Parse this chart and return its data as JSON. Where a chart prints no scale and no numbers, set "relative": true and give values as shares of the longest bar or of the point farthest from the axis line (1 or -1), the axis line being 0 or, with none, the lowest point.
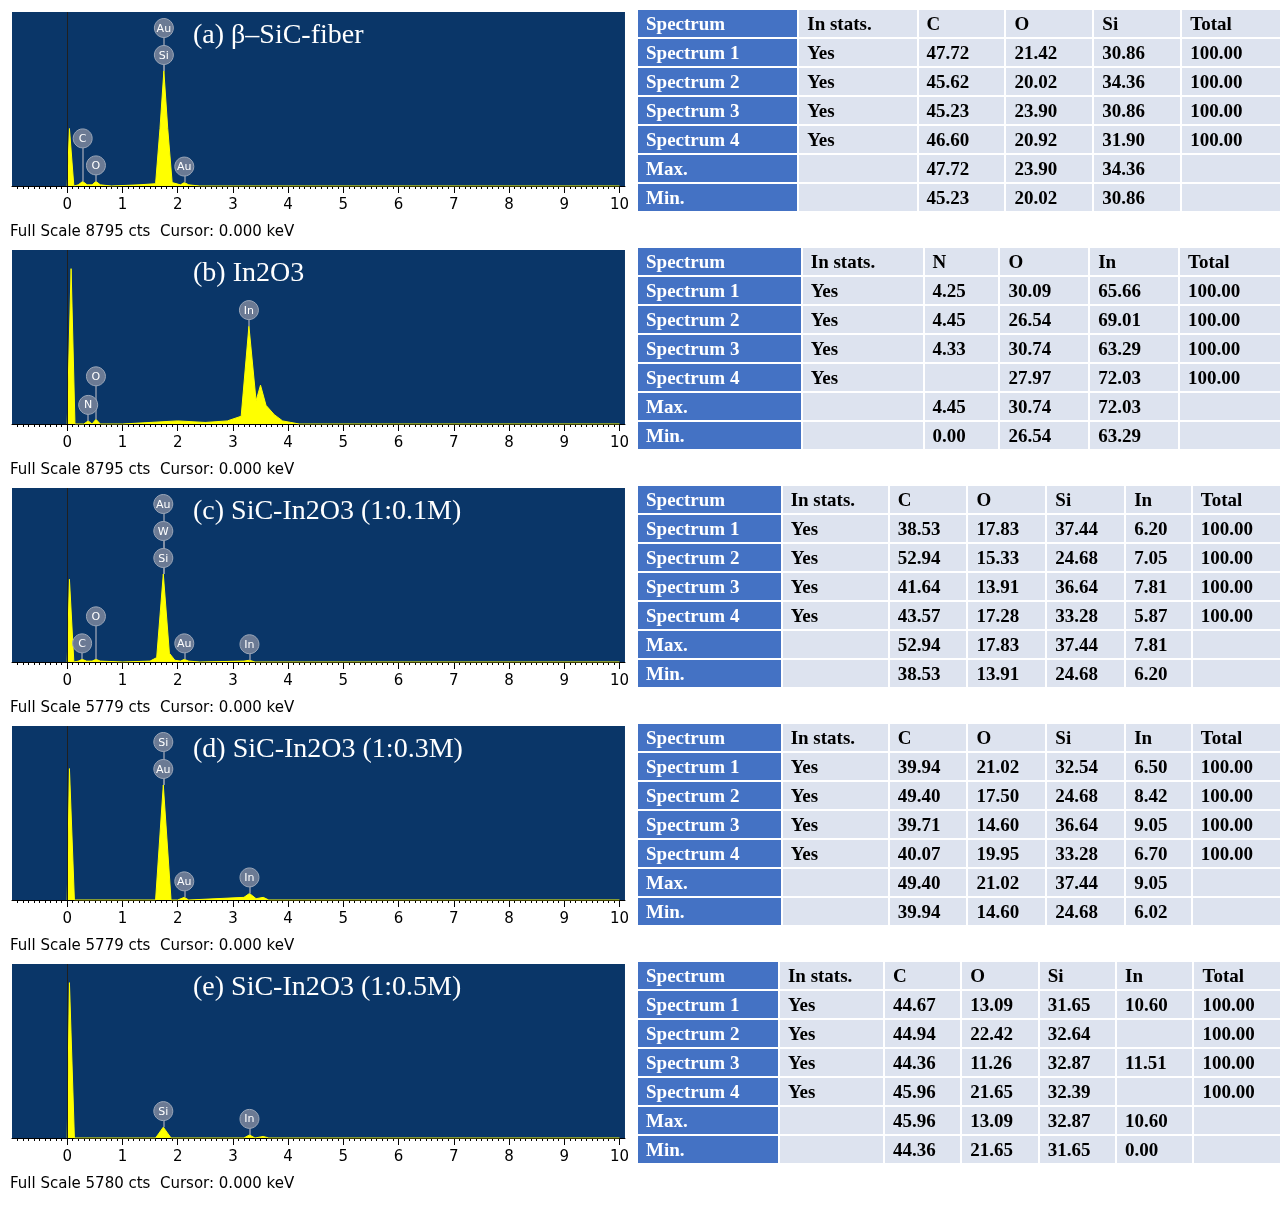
{
  "chart_data": [
    {
      "type": "area",
      "title": "(a) β–SiC-fiber",
      "relative": true,
      "xlim": [
        -1,
        10.1
      ],
      "xticks": [
        0,
        1,
        2,
        3,
        4,
        5,
        6,
        7,
        8,
        9,
        10
      ],
      "tick_labels": "x",
      "grid": false,
      "ref_lines": [
        {
          "axis": "x",
          "value": 0,
          "color": "#202020"
        }
      ],
      "series": [
        {
          "color": "#ffff00",
          "x": [
            0,
            0.04,
            0.12,
            0.2,
            0.28,
            0.36,
            0.45,
            0.52,
            0.6,
            0.8,
            1.3,
            1.6,
            1.68,
            1.75,
            1.82,
            1.9,
            2.05,
            2.12,
            2.2,
            2.4,
            3,
            10
          ],
          "values": [
            0,
            0.5,
            0,
            0.01,
            0.04,
            0.01,
            0.01,
            0.04,
            0.01,
            0,
            0.01,
            0.02,
            0.5,
            1,
            0.5,
            0.03,
            0.01,
            0.03,
            0.01,
            0,
            0,
            0
          ]
        }
      ],
      "annotations": [
        {
          "text": "Si",
          "x": 1.75,
          "y": 1
        },
        {
          "text": "Au",
          "x": 1.75,
          "y": 1
        },
        {
          "text": "O",
          "x": 0.52,
          "y": 0.04
        },
        {
          "text": "C",
          "x": 0.28,
          "y": 0.04
        },
        {
          "text": "Au",
          "x": 2.12,
          "y": 0.03
        },
        "Full Scale 8795 cts  Cursor: 0.000 keV"
      ]
    },
    {
      "type": "other",
      "categories": [
        "Spectrum",
        "In stats.",
        "C",
        "O",
        "Si",
        "Total"
      ],
      "y_categories": [
        "Spectrum 1",
        "Spectrum 2",
        "Spectrum 3",
        "Spectrum 4",
        "Max.",
        "Min."
      ],
      "cell_labels": [
        [
          "Yes",
          "47.72",
          "21.42",
          "30.86",
          "100.00"
        ],
        [
          "Yes",
          "45.62",
          "20.02",
          "34.36",
          "100.00"
        ],
        [
          "Yes",
          "45.23",
          "23.90",
          "30.86",
          "100.00"
        ],
        [
          "Yes",
          "46.60",
          "20.92",
          "31.90",
          "100.00"
        ],
        [
          null,
          "47.72",
          "23.90",
          "34.36",
          null
        ],
        [
          null,
          "45.23",
          "20.02",
          "30.86",
          null
        ]
      ]
    },
    {
      "type": "area",
      "title": "(b) In2O3",
      "relative": true,
      "xlim": [
        -1,
        10.1
      ],
      "xticks": [
        0,
        1,
        2,
        3,
        4,
        5,
        6,
        7,
        8,
        9,
        10
      ],
      "tick_labels": "x",
      "grid": false,
      "ref_lines": [
        {
          "axis": "x",
          "value": 0,
          "color": "#202020"
        }
      ],
      "series": [
        {
          "color": "#ffff00",
          "x": [
            0,
            0.07,
            0.14,
            0.3,
            0.38,
            0.45,
            0.52,
            0.6,
            1.0,
            2.0,
            2.5,
            2.9,
            3.15,
            3.29,
            3.42,
            3.5,
            3.6,
            3.75,
            3.9,
            4.05,
            4.2,
            10
          ],
          "values": [
            0,
            1,
            0,
            0,
            0.02,
            0,
            0.03,
            0,
            0,
            0.02,
            0.01,
            0.02,
            0.05,
            0.63,
            0.15,
            0.25,
            0.12,
            0.06,
            0.02,
            0.01,
            0,
            0
          ]
        }
      ],
      "annotations": [
        {
          "text": "In",
          "x": 3.29,
          "y": 0.63
        },
        {
          "text": "N",
          "x": 0.38,
          "y": 0.02
        },
        {
          "text": "O",
          "x": 0.52,
          "y": 0.03
        },
        "Full Scale 8795 cts  Cursor: 0.000 keV"
      ]
    },
    {
      "type": "other",
      "categories": [
        "Spectrum",
        "In stats.",
        "N",
        "O",
        "In",
        "Total"
      ],
      "y_categories": [
        "Spectrum 1",
        "Spectrum 2",
        "Spectrum 3",
        "Spectrum 4",
        "Max.",
        "Min."
      ],
      "cell_labels": [
        [
          "Yes",
          "4.25",
          "30.09",
          "65.66",
          "100.00"
        ],
        [
          "Yes",
          "4.45",
          "26.54",
          "69.01",
          "100.00"
        ],
        [
          "Yes",
          "4.33",
          "30.74",
          "63.29",
          "100.00"
        ],
        [
          "Yes",
          null,
          "27.97",
          "72.03",
          "100.00"
        ],
        [
          null,
          "4.45",
          "30.74",
          "72.03",
          null
        ],
        [
          null,
          "0.00",
          "26.54",
          "63.29",
          null
        ]
      ]
    },
    {
      "type": "area",
      "title": "(c) SiC-In2O3 (1:0.1M)",
      "relative": true,
      "xlim": [
        -1,
        10.1
      ],
      "xticks": [
        0,
        1,
        2,
        3,
        4,
        5,
        6,
        7,
        8,
        9,
        10
      ],
      "tick_labels": "x",
      "grid": false,
      "ref_lines": [
        {
          "axis": "x",
          "value": 0,
          "color": "#202020"
        }
      ],
      "series": [
        {
          "color": "#ffff00",
          "x": [
            0,
            0.04,
            0.12,
            0.2,
            0.27,
            0.35,
            0.45,
            0.52,
            0.6,
            1.0,
            1.5,
            1.62,
            1.74,
            1.85,
            1.95,
            2.05,
            2.12,
            2.2,
            2.4,
            3.2,
            3.3,
            3.4,
            10
          ],
          "values": [
            0,
            0.94,
            0,
            0.01,
            0.03,
            0.01,
            0.01,
            0.03,
            0.01,
            0,
            0.01,
            0.05,
            1,
            0.1,
            0.02,
            0.01,
            0.03,
            0.01,
            0,
            0.01,
            0.02,
            0,
            0
          ]
        }
      ],
      "annotations": [
        {
          "text": "Si",
          "x": 1.74,
          "y": 1
        },
        {
          "text": "W",
          "x": 1.74,
          "y": 1
        },
        {
          "text": "Au",
          "x": 1.74,
          "y": 1
        },
        {
          "text": "C",
          "x": 0.27,
          "y": 0.03
        },
        {
          "text": "O",
          "x": 0.52,
          "y": 0.03
        },
        {
          "text": "Au",
          "x": 2.12,
          "y": 0.03
        },
        {
          "text": "In",
          "x": 3.3,
          "y": 0.02
        },
        "Full Scale 5779 cts  Cursor: 0.000 keV"
      ]
    },
    {
      "type": "other",
      "categories": [
        "Spectrum",
        "In stats.",
        "C",
        "O",
        "Si",
        "In",
        "Total"
      ],
      "y_categories": [
        "Spectrum 1",
        "Spectrum 2",
        "Spectrum 3",
        "Spectrum 4",
        "Max.",
        "Min."
      ],
      "cell_labels": [
        [
          "Yes",
          "38.53",
          "17.83",
          "37.44",
          "6.20",
          "100.00"
        ],
        [
          "Yes",
          "52.94",
          "15.33",
          "24.68",
          "7.05",
          "100.00"
        ],
        [
          "Yes",
          "41.64",
          "13.91",
          "36.64",
          "7.81",
          "100.00"
        ],
        [
          "Yes",
          "43.57",
          "17.28",
          "33.28",
          "5.87",
          "100.00"
        ],
        [
          null,
          "52.94",
          "17.83",
          "37.44",
          "7.81",
          null
        ],
        [
          null,
          "38.53",
          "13.91",
          "24.68",
          "6.20",
          null
        ]
      ]
    },
    {
      "type": "area",
      "title": "(d) SiC-In2O3 (1:0.3M)",
      "relative": true,
      "xlim": [
        -1,
        10.1
      ],
      "xticks": [
        0,
        1,
        2,
        3,
        4,
        5,
        6,
        7,
        8,
        9,
        10
      ],
      "tick_labels": "x",
      "grid": false,
      "ref_lines": [
        {
          "axis": "x",
          "value": 0,
          "color": "#202020"
        }
      ],
      "series": [
        {
          "color": "#ffff00",
          "x": [
            0,
            0.04,
            0.13,
            1.6,
            1.74,
            1.88,
            2.0,
            2.12,
            2.2,
            3.2,
            3.3,
            3.42,
            3.55,
            3.65,
            10
          ],
          "values": [
            0,
            1,
            0,
            0,
            0.875,
            0,
            0,
            0.02,
            0,
            0.02,
            0.05,
            0.01,
            0.02,
            0,
            0
          ]
        }
      ],
      "annotations": [
        {
          "text": "Au",
          "x": 1.74,
          "y": 0.875
        },
        {
          "text": "Si",
          "x": 1.74,
          "y": 0.875
        },
        {
          "text": "Au",
          "x": 2.12,
          "y": 0.02
        },
        {
          "text": "In",
          "x": 3.3,
          "y": 0.05
        },
        "Full Scale 5779 cts  Cursor: 0.000 keV"
      ]
    },
    {
      "type": "other",
      "categories": [
        "Spectrum",
        "In stats.",
        "C",
        "O",
        "Si",
        "In",
        "Total"
      ],
      "y_categories": [
        "Spectrum 1",
        "Spectrum 2",
        "Spectrum 3",
        "Spectrum 4",
        "Max.",
        "Min."
      ],
      "cell_labels": [
        [
          "Yes",
          "39.94",
          "21.02",
          "32.54",
          "6.50",
          "100.00"
        ],
        [
          "Yes",
          "49.40",
          "17.50",
          "24.68",
          "8.42",
          "100.00"
        ],
        [
          "Yes",
          "39.71",
          "14.60",
          "36.64",
          "9.05",
          "100.00"
        ],
        [
          "Yes",
          "40.07",
          "19.95",
          "33.28",
          "6.70",
          "100.00"
        ],
        [
          null,
          "49.40",
          "21.02",
          "37.44",
          "9.05",
          null
        ],
        [
          null,
          "39.94",
          "14.60",
          "24.68",
          "6.02",
          null
        ]
      ]
    },
    {
      "type": "area",
      "title": "(e) SiC-In2O3 (1:0.5M)",
      "relative": true,
      "xlim": [
        -1,
        10.1
      ],
      "xticks": [
        0,
        1,
        2,
        3,
        4,
        5,
        6,
        7,
        8,
        9,
        10
      ],
      "tick_labels": "x",
      "grid": false,
      "ref_lines": [
        {
          "axis": "x",
          "value": 0,
          "color": "#202020"
        }
      ],
      "series": [
        {
          "color": "#ffff00",
          "x": [
            0,
            0.04,
            0.13,
            1.6,
            1.74,
            1.88,
            3.2,
            3.3,
            3.4,
            3.55,
            3.65,
            10
          ],
          "values": [
            0,
            1,
            0,
            0,
            0.07,
            0,
            0,
            0.02,
            0,
            0.01,
            0,
            0
          ]
        }
      ],
      "annotations": [
        {
          "text": "Si",
          "x": 1.74,
          "y": 0.07
        },
        {
          "text": "In",
          "x": 3.3,
          "y": 0.02
        },
        "Full Scale 5780 cts  Cursor: 0.000 keV"
      ]
    },
    {
      "type": "other",
      "categories": [
        "Spectrum",
        "In stats.",
        "C",
        "O",
        "Si",
        "In",
        "Total"
      ],
      "y_categories": [
        "Spectrum 1",
        "Spectrum 2",
        "Spectrum 3",
        "Spectrum 4",
        "Max.",
        "Min."
      ],
      "cell_labels": [
        [
          "Yes",
          "44.67",
          "13.09",
          "31.65",
          "10.60",
          "100.00"
        ],
        [
          "Yes",
          "44.94",
          "22.42",
          "32.64",
          null,
          "100.00"
        ],
        [
          "Yes",
          "44.36",
          "11.26",
          "32.87",
          "11.51",
          "100.00"
        ],
        [
          "Yes",
          "45.96",
          "21.65",
          "32.39",
          null,
          "100.00"
        ],
        [
          null,
          "45.96",
          "13.09",
          "32.87",
          "10.60",
          null
        ],
        [
          null,
          "44.36",
          "21.65",
          "31.65",
          "0.00",
          null
        ]
      ]
    }
  ]
}
